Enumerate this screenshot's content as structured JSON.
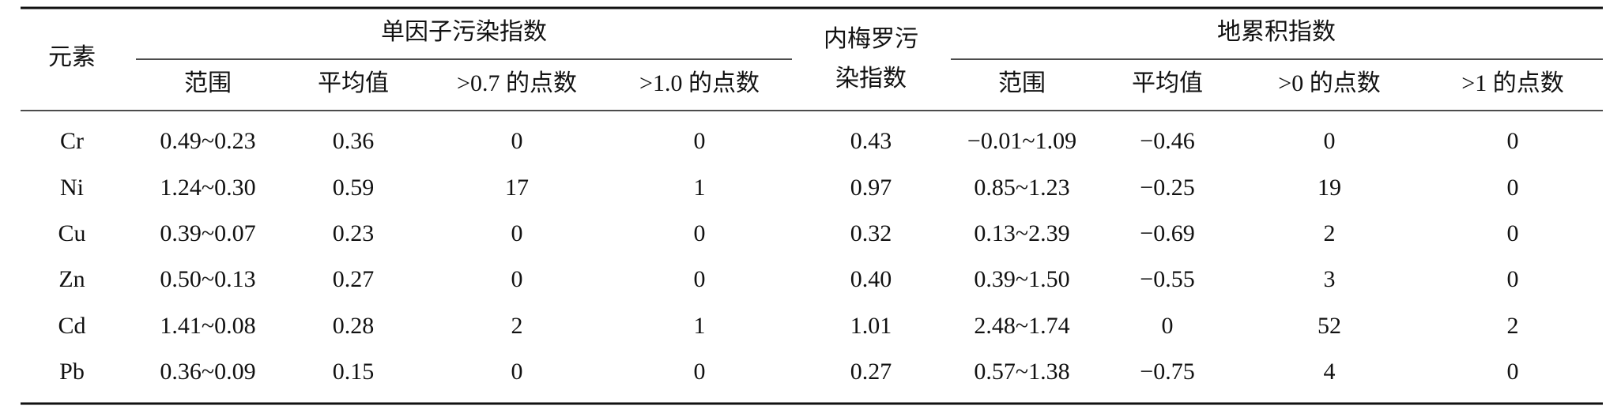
{
  "table": {
    "header": {
      "element": "元素",
      "group1": {
        "title": "单因子污染指数",
        "columns": [
          "范围",
          "平均值",
          ">0.7 的点数",
          ">1.0 的点数"
        ]
      },
      "nemerow": [
        "内梅罗污",
        "染指数"
      ],
      "group2": {
        "title": "地累积指数",
        "columns": [
          "范围",
          "平均值",
          ">0 的点数",
          ">1 的点数"
        ]
      }
    },
    "rows": [
      [
        "Cr",
        "0.49~0.23",
        "0.36",
        "0",
        "0",
        "0.43",
        "−0.01~1.09",
        "−0.46",
        "0",
        "0"
      ],
      [
        "Ni",
        "1.24~0.30",
        "0.59",
        "17",
        "1",
        "0.97",
        "0.85~1.23",
        "−0.25",
        "19",
        "0"
      ],
      [
        "Cu",
        "0.39~0.07",
        "0.23",
        "0",
        "0",
        "0.32",
        "0.13~2.39",
        "−0.69",
        "2",
        "0"
      ],
      [
        "Zn",
        "0.50~0.13",
        "0.27",
        "0",
        "0",
        "0.40",
        "0.39~1.50",
        "−0.55",
        "3",
        "0"
      ],
      [
        "Cd",
        "1.41~0.08",
        "0.28",
        "2",
        "1",
        "1.01",
        "2.48~1.74",
        "0",
        "52",
        "2"
      ],
      [
        "Pb",
        "0.36~0.09",
        "0.15",
        "0",
        "0",
        "0.27",
        "0.57~1.38",
        "−0.75",
        "4",
        "0"
      ]
    ]
  }
}
